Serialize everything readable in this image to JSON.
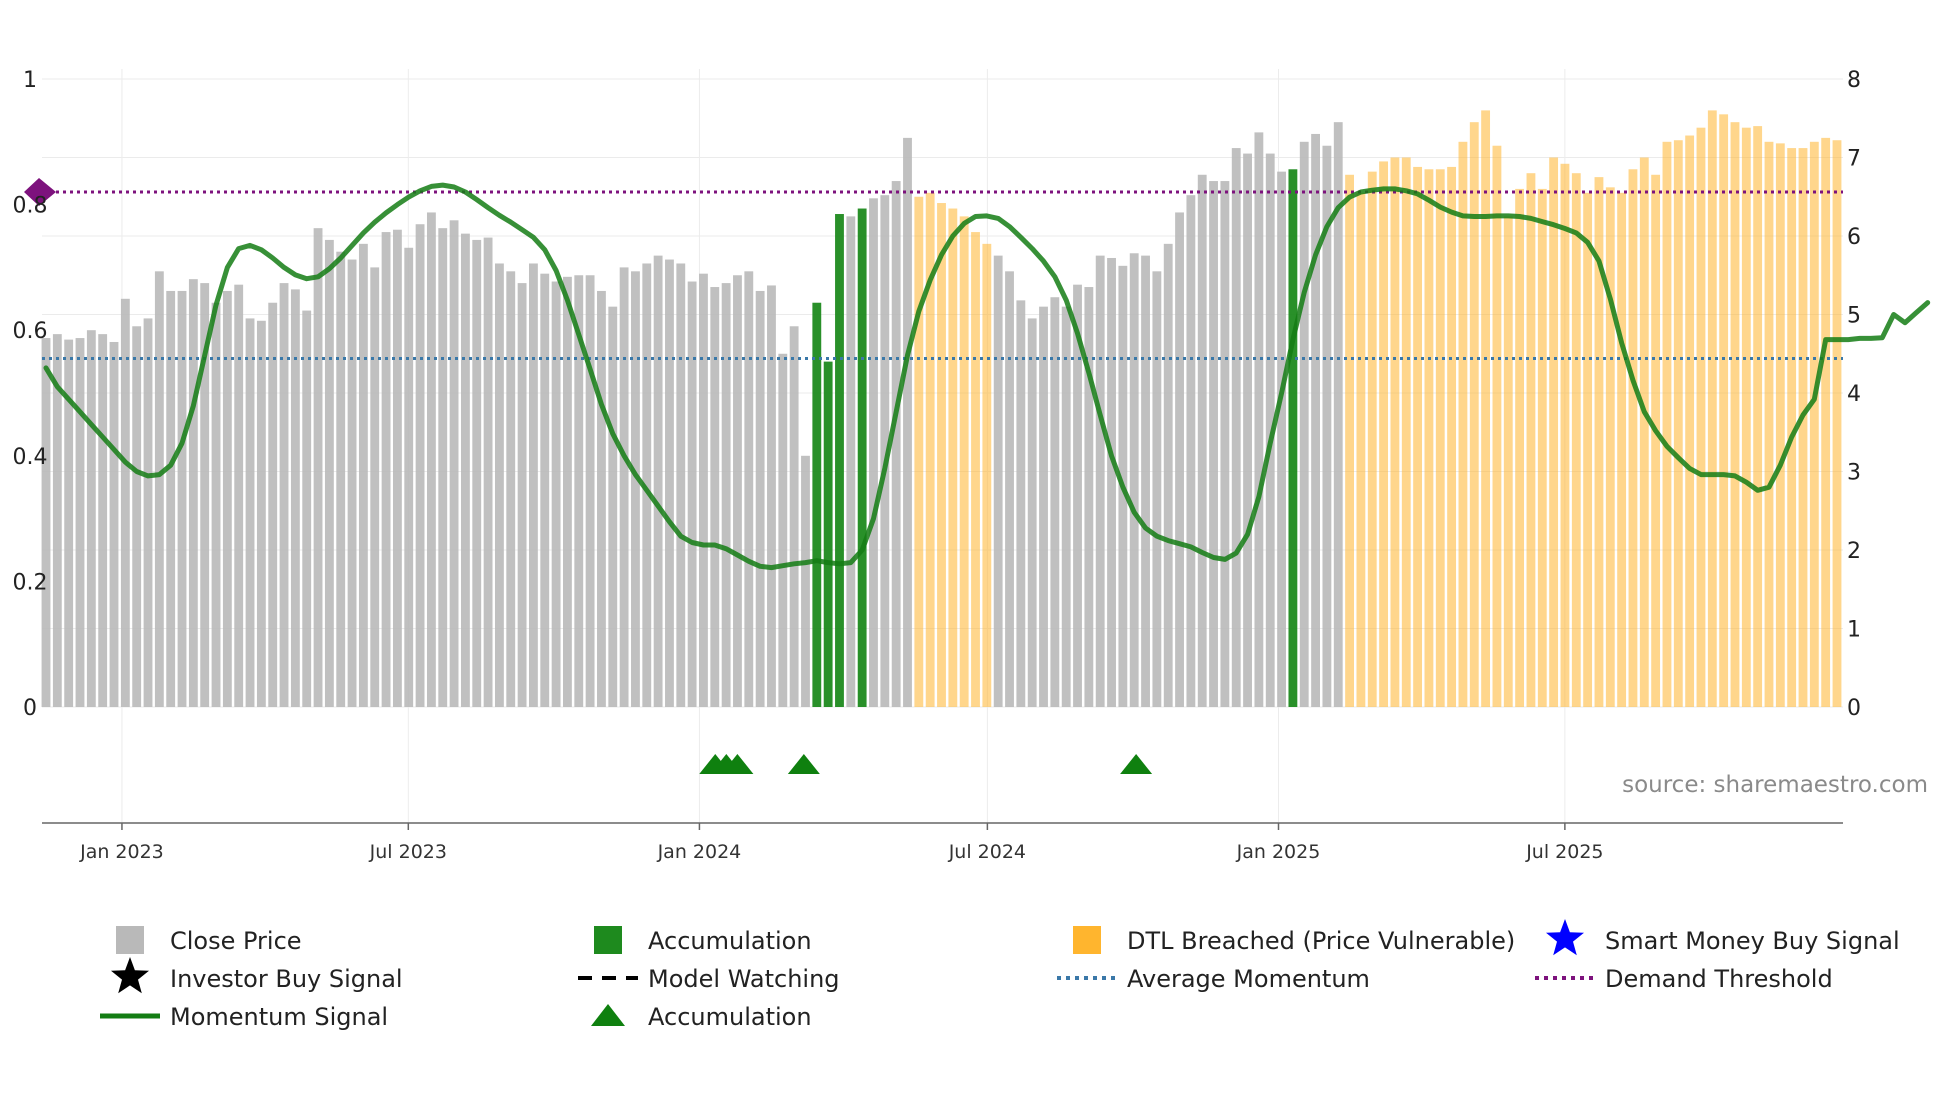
{
  "chart_data": {
    "type": "bar",
    "title": "",
    "source_label": "source: sharemaestro.com",
    "colors": {
      "close": "#b9b9b9",
      "accumulation": "#1e8a1e",
      "breached": "#ffb52e",
      "momentum": "#147d14",
      "avg_momentum": "#3a78a8",
      "demand": "#7d127d",
      "marker": "#0f800f"
    },
    "left_axis": {
      "min": 0,
      "max": 1,
      "ticks": [
        "0",
        "0.2",
        "0.4",
        "0.6",
        "0.8",
        "1"
      ]
    },
    "right_axis": {
      "min": 0,
      "max": 8,
      "ticks": [
        "0",
        "1",
        "2",
        "3",
        "4",
        "5",
        "6",
        "7",
        "8"
      ]
    },
    "x_axis": {
      "start": "2022-11",
      "end": "2025-12",
      "ticks": [
        "Jan 2023",
        "Jul 2023",
        "Jan 2024",
        "Jul 2024",
        "Jan 2025",
        "Jul 2025"
      ]
    },
    "close_price_states": "GGGGGGGGGGGGGGGGGGGGGGGGGGGGGGGGGGGGGGGGGGGGGGGGGGGGGGGGGGGGGGGGGGGGAAAGAGGGGOOOOOOOGGGGGGGGGGGGGGGGGGGGGGGGGGAGGGGOOOOOOOOOOOOOOOOOOOOOOOOOOOOOOOOOOOOOOOOOOOOGOOOOOOOOOOOOOOOOOOOOOOOOOOOOOO",
    "close_price": [
      4.7,
      4.75,
      4.68,
      4.7,
      4.8,
      4.75,
      4.65,
      5.2,
      4.85,
      4.95,
      5.55,
      5.3,
      5.3,
      5.45,
      5.4,
      5.15,
      5.3,
      5.38,
      4.95,
      4.92,
      5.15,
      5.4,
      5.32,
      5.05,
      6.1,
      5.95,
      5.8,
      5.7,
      5.9,
      5.6,
      6.05,
      6.08,
      5.85,
      6.15,
      6.3,
      6.1,
      6.2,
      6.03,
      5.95,
      5.98,
      5.65,
      5.55,
      5.4,
      5.65,
      5.52,
      5.42,
      5.48,
      5.5,
      5.5,
      5.3,
      5.1,
      5.6,
      5.55,
      5.65,
      5.75,
      5.7,
      5.65,
      5.42,
      5.52,
      5.35,
      5.4,
      5.5,
      5.55,
      5.3,
      5.37,
      4.5,
      4.85,
      3.2,
      5.15,
      4.4,
      6.28,
      6.25,
      6.35,
      6.48,
      6.52,
      6.7,
      7.25,
      6.5,
      6.55,
      6.42,
      6.35,
      6.25,
      6.05,
      5.9,
      5.75,
      5.55,
      5.18,
      4.95,
      5.1,
      5.22,
      5.1,
      5.38,
      5.35,
      5.75,
      5.72,
      5.62,
      5.78,
      5.75,
      5.55,
      5.9,
      6.3,
      6.52,
      6.78,
      6.7,
      6.7,
      7.12,
      7.05,
      7.32,
      7.05,
      6.82,
      6.85,
      7.2,
      7.3,
      7.15,
      7.45,
      6.78,
      6.55,
      6.82,
      6.95,
      7.0,
      7.0,
      6.88,
      6.85,
      6.85,
      6.88,
      7.2,
      7.45,
      7.6,
      7.15,
      6.25,
      6.6,
      6.8,
      6.6,
      7.0,
      6.92,
      6.8,
      6.55,
      6.75,
      6.62,
      6.55,
      6.85,
      7.0,
      6.78,
      7.2,
      7.22,
      7.28,
      7.38,
      7.6,
      7.55,
      7.45,
      7.38,
      7.4,
      7.2,
      7.18,
      7.12,
      7.12,
      7.2,
      7.25,
      7.22
    ],
    "momentum": [
      0.54,
      0.51,
      0.49,
      0.47,
      0.45,
      0.43,
      0.41,
      0.39,
      0.375,
      0.368,
      0.37,
      0.385,
      0.42,
      0.48,
      0.56,
      0.64,
      0.7,
      0.73,
      0.735,
      0.728,
      0.715,
      0.7,
      0.688,
      0.682,
      0.685,
      0.698,
      0.715,
      0.735,
      0.755,
      0.772,
      0.787,
      0.8,
      0.812,
      0.822,
      0.829,
      0.831,
      0.828,
      0.82,
      0.808,
      0.795,
      0.783,
      0.772,
      0.76,
      0.748,
      0.728,
      0.695,
      0.648,
      0.593,
      0.538,
      0.482,
      0.435,
      0.4,
      0.37,
      0.345,
      0.32,
      0.295,
      0.272,
      0.262,
      0.258,
      0.258,
      0.252,
      0.242,
      0.232,
      0.224,
      0.222,
      0.225,
      0.228,
      0.23,
      0.233,
      0.23,
      0.228,
      0.23,
      0.25,
      0.3,
      0.38,
      0.47,
      0.56,
      0.63,
      0.68,
      0.72,
      0.75,
      0.77,
      0.781,
      0.782,
      0.778,
      0.765,
      0.748,
      0.73,
      0.71,
      0.685,
      0.648,
      0.595,
      0.532,
      0.465,
      0.4,
      0.35,
      0.31,
      0.285,
      0.272,
      0.265,
      0.26,
      0.255,
      0.246,
      0.238,
      0.235,
      0.245,
      0.275,
      0.335,
      0.42,
      0.5,
      0.585,
      0.66,
      0.72,
      0.765,
      0.795,
      0.812,
      0.82,
      0.823,
      0.825,
      0.825,
      0.822,
      0.817,
      0.807,
      0.796,
      0.788,
      0.782,
      0.781,
      0.781,
      0.782,
      0.782,
      0.781,
      0.778,
      0.773,
      0.768,
      0.762,
      0.755,
      0.74,
      0.71,
      0.65,
      0.58,
      0.52,
      0.47,
      0.44,
      0.415,
      0.397,
      0.38,
      0.37,
      0.37,
      0.37,
      0.368,
      0.358,
      0.345,
      0.35,
      0.385,
      0.43,
      0.465,
      0.49,
      0.585,
      0.585,
      0.585,
      0.587,
      0.587,
      0.588,
      0.625,
      0.612,
      0.628,
      0.644
    ],
    "average_momentum": 0.555,
    "demand_threshold": 0.82,
    "accumulation_marker_dates": [
      "2024-01-11",
      "2024-01-18",
      "2024-01-25",
      "2024-03-07",
      "2024-10-03"
    ],
    "legend": [
      {
        "label": "Close Price",
        "symbol": "square-gray"
      },
      {
        "label": "Accumulation",
        "symbol": "square-green"
      },
      {
        "label": "DTL Breached (Price Vulnerable)",
        "symbol": "square-orange"
      },
      {
        "label": "Smart Money Buy Signal",
        "symbol": "star-blue"
      },
      {
        "label": "Investor Buy Signal",
        "symbol": "star-black"
      },
      {
        "label": "Model Watching",
        "symbol": "dash-black"
      },
      {
        "label": "Average Momentum",
        "symbol": "dot-blue"
      },
      {
        "label": "Demand Threshold",
        "symbol": "dot-purple"
      },
      {
        "label": "Momentum Signal",
        "symbol": "line-green"
      },
      {
        "label": "Accumulation",
        "symbol": "triangle-green"
      }
    ]
  }
}
